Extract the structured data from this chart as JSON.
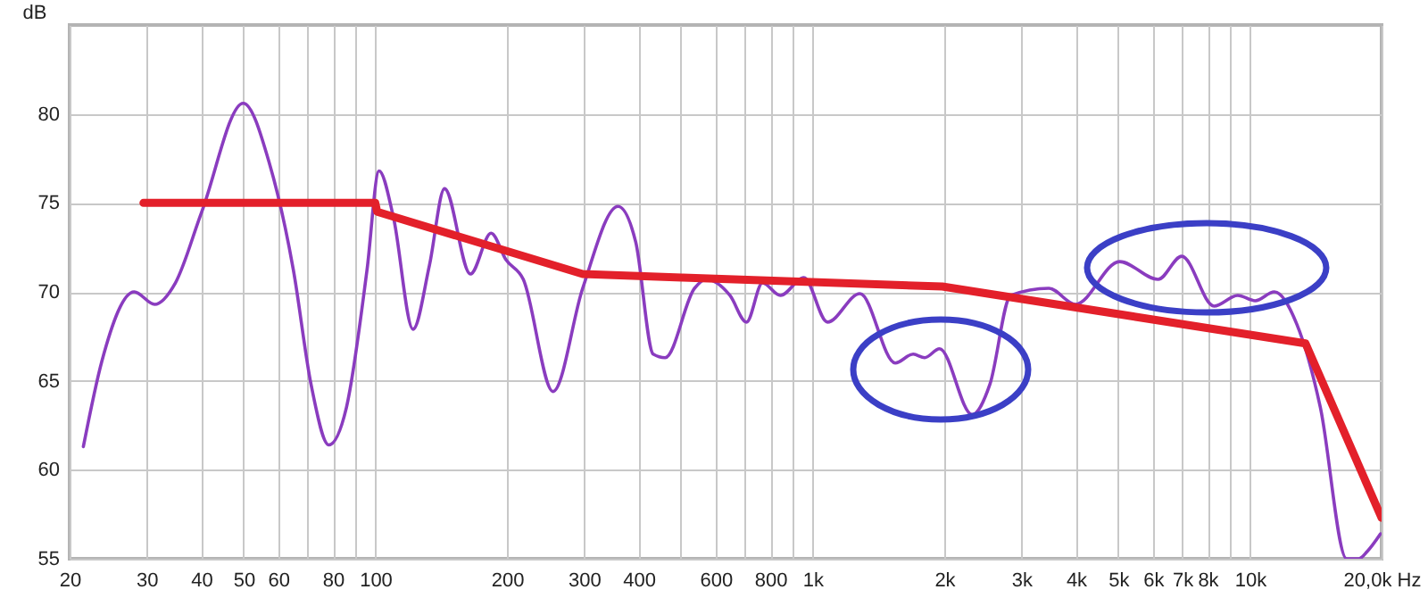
{
  "chart_data": {
    "type": "line",
    "ylabel": "dB",
    "log": "x",
    "grid": true,
    "xlim": [
      20,
      20000
    ],
    "ylim": [
      55,
      85
    ],
    "xticks": [
      20,
      30,
      40,
      50,
      60,
      {
        "value": 70,
        "label": null
      },
      80,
      {
        "value": 90,
        "label": null
      },
      100,
      200,
      300,
      400,
      {
        "value": 500,
        "label": null
      },
      600,
      {
        "value": 700,
        "label": null
      },
      800,
      {
        "value": 900,
        "label": null
      },
      {
        "value": 1000,
        "label": "1k"
      },
      {
        "value": 2000,
        "label": "2k"
      },
      {
        "value": 3000,
        "label": "3k"
      },
      {
        "value": 4000,
        "label": "4k"
      },
      {
        "value": 5000,
        "label": "5k"
      },
      {
        "value": 6000,
        "label": "6k"
      },
      {
        "value": 7000,
        "label": "7k"
      },
      {
        "value": 8000,
        "label": "8k"
      },
      {
        "value": 9000,
        "label": null
      },
      {
        "value": 10000,
        "label": "10k"
      },
      {
        "value": 20000,
        "label": "20,0k Hz"
      }
    ],
    "yticks": [
      55,
      60,
      65,
      70,
      75,
      80
    ],
    "series": [
      {
        "color": "#8a3cbf",
        "x": [
          21.5,
          23.7,
          28.1,
          31.3,
          34.9,
          40.1,
          49.9,
          57.3,
          65,
          71.3,
          78.3,
          85.9,
          95.7,
          102,
          110,
          122,
          133,
          144,
          165,
          184,
          199,
          218,
          255,
          298,
          359,
          394,
          432,
          460,
          537,
          571,
          647,
          706,
          768,
          844,
          955,
          1081,
          1283,
          1545,
          1698,
          1804,
          1951,
          2316,
          2543,
          2837,
          3469,
          3991,
          5035,
          6166,
          6982,
          8279,
          9376,
          10280,
          11370,
          12790,
          14490,
          16630,
          17740,
          18530,
          19890
        ],
        "values": [
          61.3,
          66.1,
          70.0,
          69.3,
          70.5,
          74.5,
          80.6,
          77.2,
          71.2,
          64.8,
          61.4,
          63.5,
          71.2,
          76.8,
          74.2,
          67.9,
          71.5,
          75.8,
          71.0,
          73.3,
          71.8,
          70.7,
          64.4,
          70.2,
          74.8,
          72.8,
          66.5,
          66.3,
          70.2,
          70.7,
          69.8,
          68.3,
          70.5,
          69.8,
          70.8,
          68.3,
          69.9,
          66.0,
          66.5,
          66.3,
          66.8,
          63.1,
          64.8,
          69.8,
          70.2,
          69.3,
          71.7,
          70.7,
          72.0,
          69.2,
          69.8,
          69.5,
          70.0,
          68.2,
          63.5,
          55.0,
          55.0,
          55.4,
          56.4
        ]
      },
      {
        "color": "#e3202a",
        "x": [
          29.5,
          100,
          101,
          298,
          505,
          1980,
          13400,
          20000
        ],
        "values": [
          75,
          75,
          74.5,
          71,
          70.8,
          70.3,
          67.1,
          57.3
        ]
      }
    ]
  }
}
